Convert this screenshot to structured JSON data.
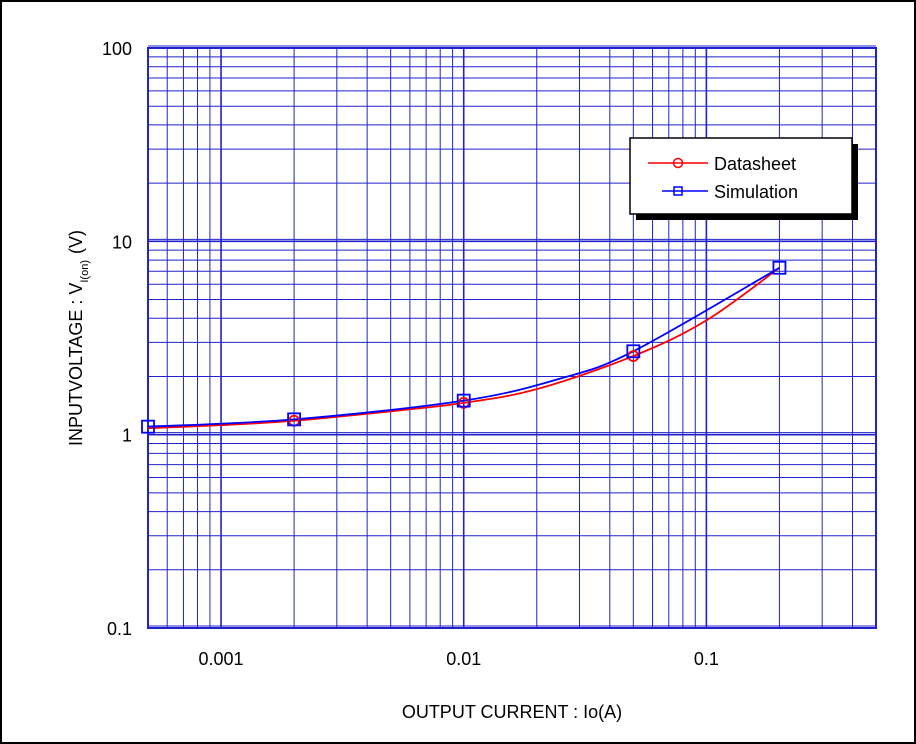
{
  "chart_data": {
    "type": "line",
    "xlabel": "OUTPUT CURRENT : Io(A)",
    "ylabel_main": "INPUTVOLTAGE : V",
    "ylabel_sub": "I(on)",
    "ylabel_unit": "(V)",
    "x_scale": "log",
    "y_scale": "log",
    "xlim": [
      0.0005,
      0.5
    ],
    "ylim": [
      0.1,
      100
    ],
    "x_ticks": [
      {
        "value": 0.001,
        "label": "0.001"
      },
      {
        "value": 0.01,
        "label": "0.01"
      },
      {
        "value": 0.1,
        "label": "0.1"
      }
    ],
    "y_ticks": [
      {
        "value": 0.1,
        "label": "0.1"
      },
      {
        "value": 1,
        "label": "1"
      },
      {
        "value": 10,
        "label": "10"
      },
      {
        "value": 100,
        "label": "100"
      }
    ],
    "grid": true,
    "grid_color": "#2222cc",
    "legend_position": "top-right",
    "series": [
      {
        "name": "Datasheet",
        "color": "#ff0000",
        "marker": "circle",
        "x": [
          0.0005,
          0.001,
          0.002,
          0.005,
          0.01,
          0.02,
          0.05,
          0.1,
          0.2
        ],
        "y": [
          1.08,
          1.12,
          1.18,
          1.32,
          1.46,
          1.72,
          2.55,
          3.9,
          7.3
        ],
        "markers_x": [
          0.002,
          0.01,
          0.05
        ],
        "markers_y": [
          1.18,
          1.46,
          2.55
        ]
      },
      {
        "name": "Simulation",
        "color": "#0000ff",
        "marker": "square",
        "x": [
          0.0005,
          0.002,
          0.01,
          0.025,
          0.05,
          0.2
        ],
        "y": [
          1.1,
          1.2,
          1.5,
          1.95,
          2.7,
          7.3
        ],
        "markers_x": [
          0.0005,
          0.002,
          0.01,
          0.05,
          0.2
        ],
        "markers_y": [
          1.1,
          1.2,
          1.5,
          2.7,
          7.3
        ]
      }
    ]
  }
}
